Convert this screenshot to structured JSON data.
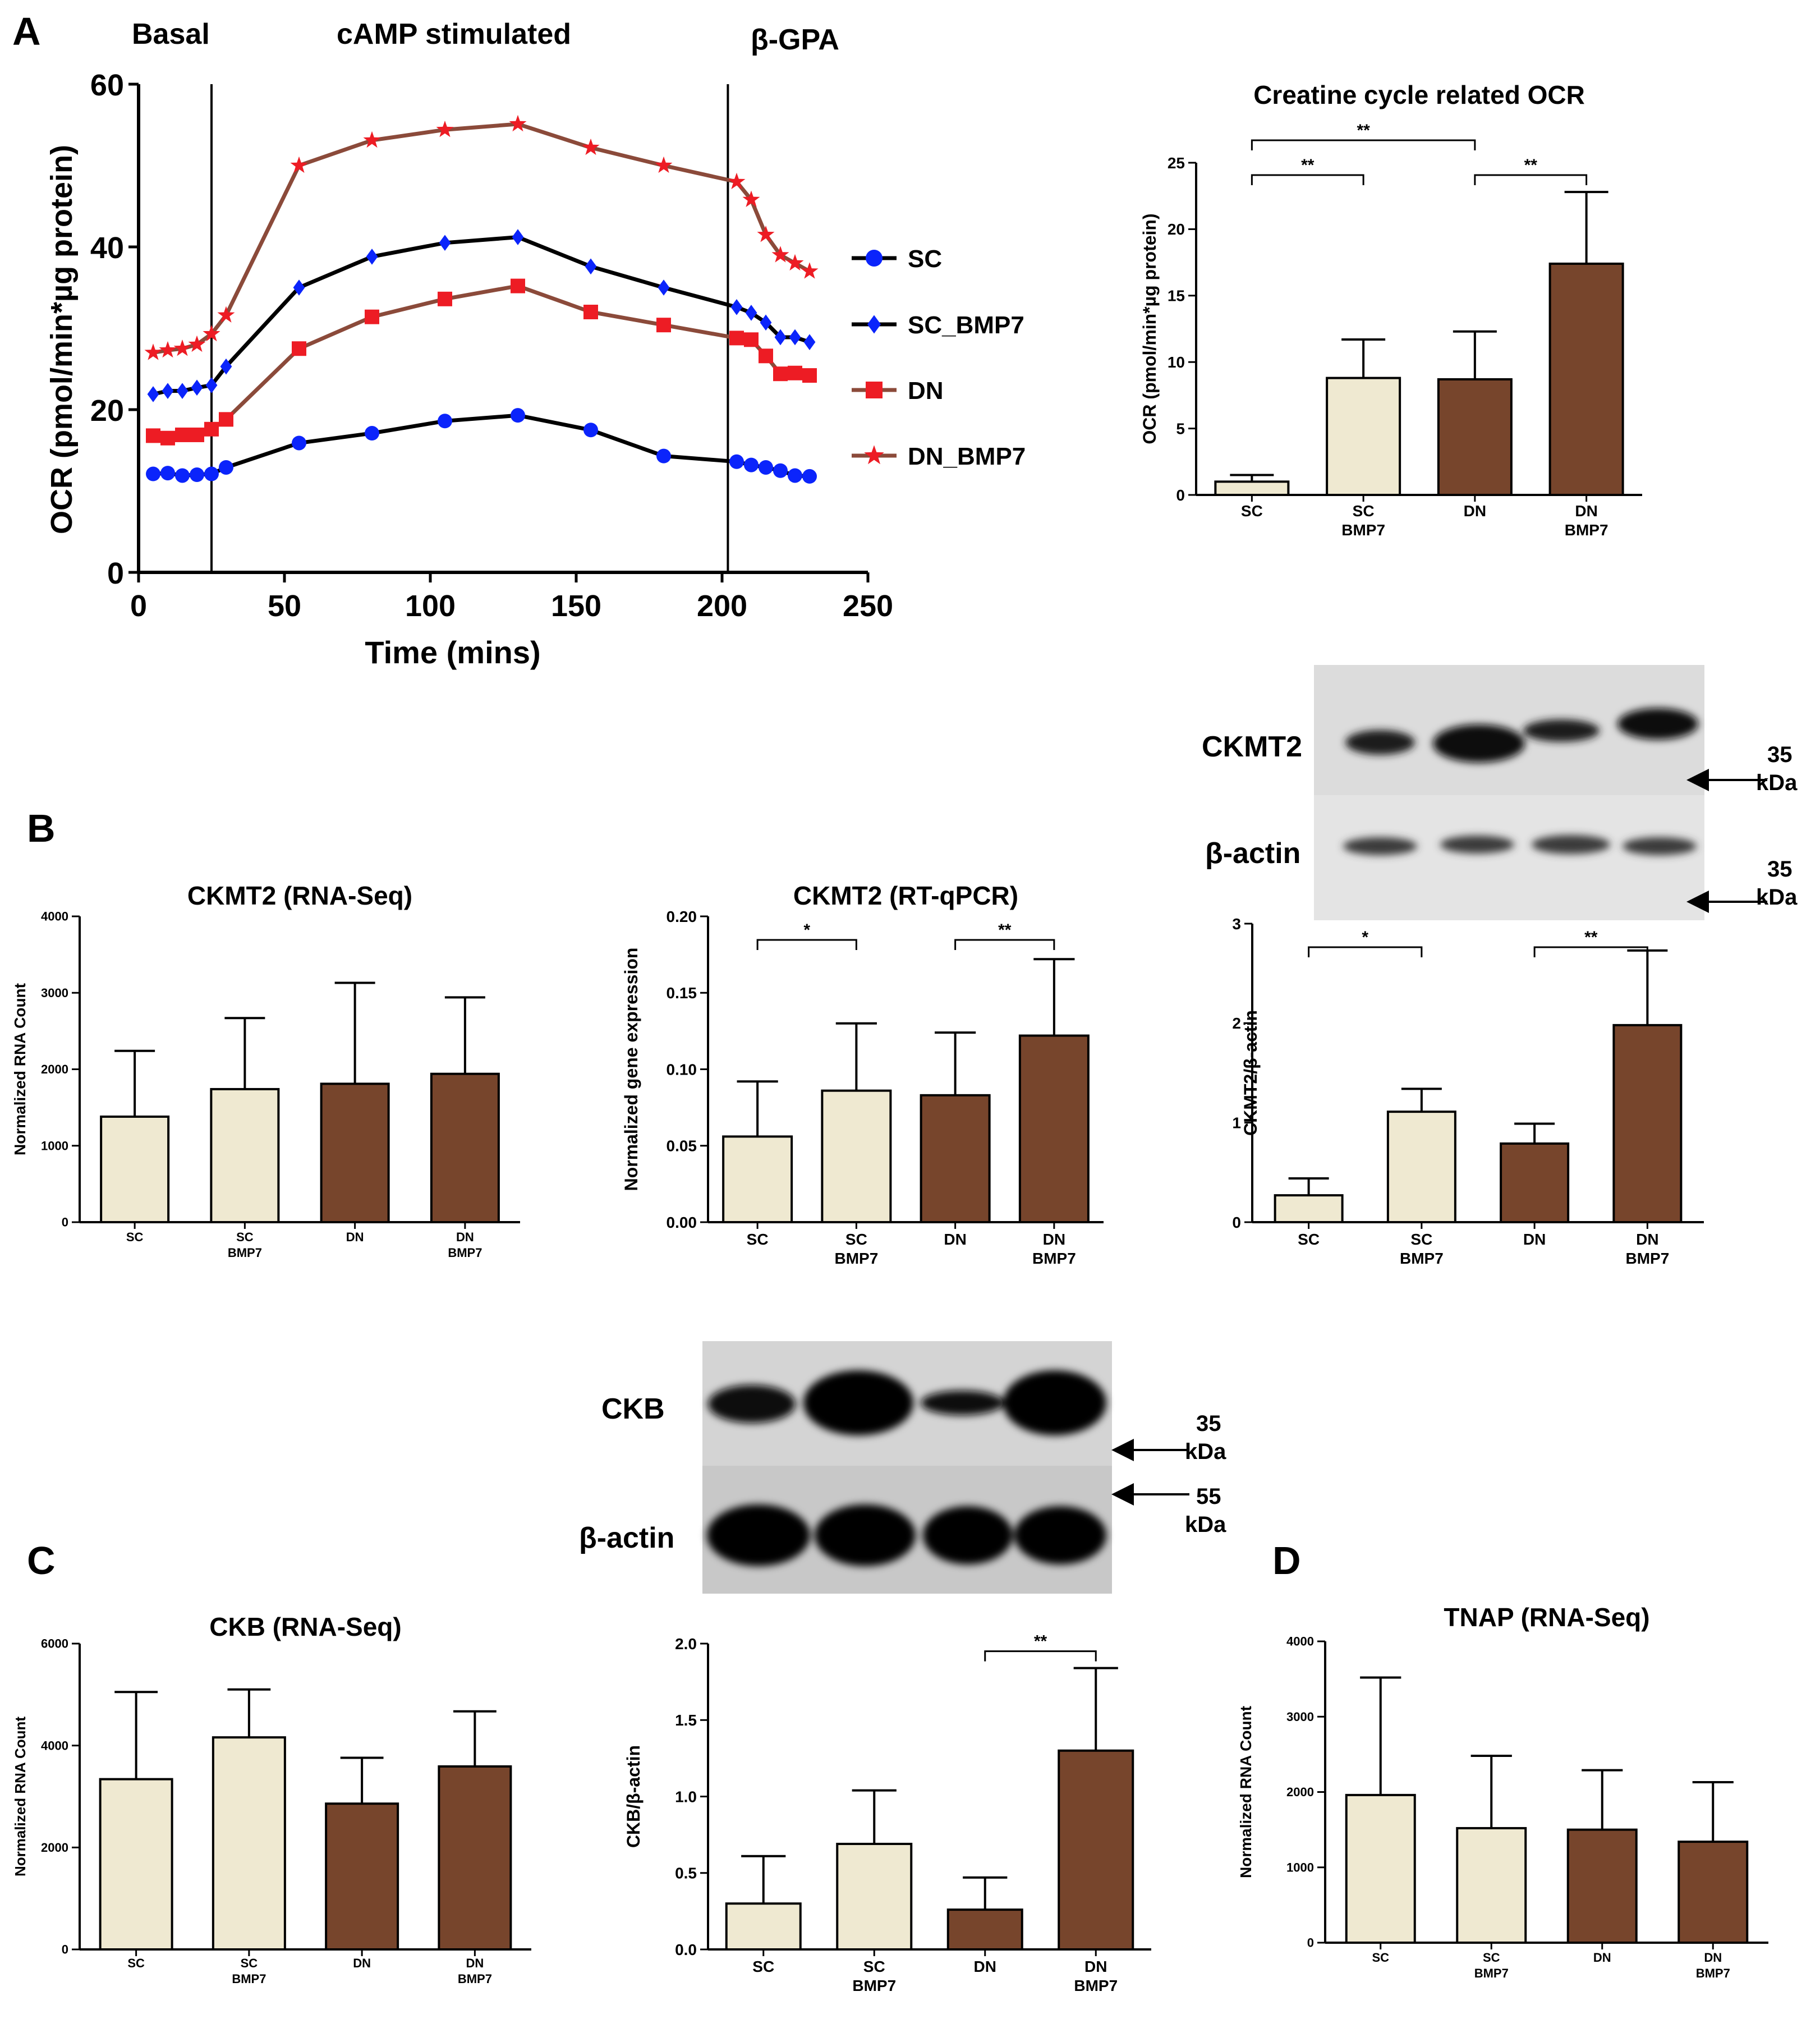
{
  "figure": {
    "panel_letters": [
      "A",
      "B",
      "C",
      "D"
    ],
    "colors": {
      "SC": "#0b24fb",
      "SC_BMP7": "#0b24fb",
      "DN": "#ed1c24",
      "DN_BMP7": "#ed1c24",
      "line_SC": "#000000",
      "line_SC_BMP7": "#000000",
      "line_DN": "#8b4a3a",
      "line_DN_BMP7": "#8b4a3a",
      "bar_light": "#efe9d1",
      "bar_dark": "#77452c"
    }
  },
  "panelA": {
    "phase_labels": [
      "Basal",
      "cAMP stimulated",
      "β-GPA"
    ],
    "legend": [
      "SC",
      "SC_BMP7",
      "DN",
      "DN_BMP7"
    ]
  },
  "blots": {
    "ckmt2": {
      "labels": [
        "CKMT2",
        "β-actin"
      ],
      "markers": [
        [
          "35",
          "kDa"
        ],
        [
          "35",
          "kDa"
        ]
      ]
    },
    "ckb": {
      "labels": [
        "CKB",
        "β-actin"
      ],
      "markers": [
        [
          "35",
          "kDa"
        ],
        [
          "55",
          "kDa"
        ]
      ]
    }
  },
  "chart_data": [
    {
      "id": "ocr_timecourse",
      "type": "line",
      "title": "",
      "xlabel": "Time (mins)",
      "ylabel": "OCR (pmol/min*µg protein)",
      "xlim": [
        0,
        250
      ],
      "ylim": [
        0,
        60
      ],
      "xticks": [
        0,
        50,
        100,
        150,
        200,
        250
      ],
      "yticks": [
        0,
        20,
        40,
        60
      ],
      "vlines": [
        25,
        202
      ],
      "series": [
        {
          "name": "SC",
          "marker": "circle",
          "x": [
            5,
            10,
            15,
            20,
            25,
            30,
            55,
            80,
            105,
            130,
            155,
            180,
            205,
            210,
            215,
            220,
            225,
            230
          ],
          "y": [
            12.1,
            12.2,
            11.9,
            12.0,
            12.1,
            12.9,
            15.9,
            17.1,
            18.6,
            19.3,
            17.5,
            14.3,
            13.6,
            13.2,
            12.9,
            12.5,
            11.9,
            11.8
          ]
        },
        {
          "name": "SC_BMP7",
          "marker": "diamond",
          "x": [
            5,
            10,
            15,
            20,
            25,
            30,
            55,
            80,
            105,
            130,
            155,
            180,
            205,
            210,
            215,
            220,
            225,
            230
          ],
          "y": [
            21.9,
            22.3,
            22.3,
            22.7,
            23.0,
            25.3,
            35.0,
            38.8,
            40.5,
            41.2,
            37.6,
            35.0,
            32.6,
            31.9,
            30.7,
            28.9,
            28.9,
            28.3
          ]
        },
        {
          "name": "DN",
          "marker": "square",
          "x": [
            5,
            10,
            15,
            20,
            25,
            30,
            55,
            80,
            105,
            130,
            155,
            180,
            205,
            210,
            215,
            220,
            225,
            230
          ],
          "y": [
            16.8,
            16.5,
            16.9,
            16.9,
            17.6,
            18.8,
            27.5,
            31.4,
            33.6,
            35.2,
            32.0,
            30.4,
            28.8,
            28.6,
            26.6,
            24.4,
            24.5,
            24.2
          ]
        },
        {
          "name": "DN_BMP7",
          "marker": "star",
          "x": [
            5,
            10,
            15,
            20,
            25,
            30,
            55,
            80,
            105,
            130,
            155,
            180,
            205,
            210,
            215,
            220,
            225,
            230
          ],
          "y": [
            27.0,
            27.3,
            27.5,
            28.0,
            29.3,
            31.6,
            50.0,
            53.1,
            54.4,
            55.1,
            52.2,
            50.0,
            48.0,
            45.8,
            41.5,
            39.0,
            38.0,
            37.0
          ]
        }
      ]
    },
    {
      "id": "creatine_ocr",
      "type": "bar",
      "title": "Creatine cycle related OCR",
      "ylabel": "OCR (pmol/min*µg protein)",
      "categories": [
        [
          "SC"
        ],
        [
          "SC",
          "BMP7"
        ],
        [
          "DN"
        ],
        [
          "DN",
          "BMP7"
        ]
      ],
      "values": [
        1.0,
        8.8,
        8.7,
        17.4
      ],
      "errors": [
        0.5,
        2.9,
        3.6,
        5.4
      ],
      "ylim": [
        0,
        25
      ],
      "yticks": [
        0,
        5,
        10,
        15,
        20,
        25
      ],
      "significance": [
        {
          "from": 0,
          "to": 1,
          "label": "**",
          "level": 0
        },
        {
          "from": 2,
          "to": 3,
          "label": "**",
          "level": 0
        },
        {
          "from": 0,
          "to": 2,
          "label": "**",
          "level": 1
        }
      ]
    },
    {
      "id": "ckmt2_rnaseq",
      "type": "bar",
      "title": "CKMT2 (RNA-Seq)",
      "ylabel": "Normalized RNA Count",
      "categories": [
        [
          "SC"
        ],
        [
          "SC",
          "BMP7"
        ],
        [
          "DN"
        ],
        [
          "DN",
          "BMP7"
        ]
      ],
      "values": [
        1380,
        1740,
        1810,
        1940
      ],
      "errors": [
        860,
        930,
        1320,
        1000
      ],
      "ylim": [
        0,
        4000
      ],
      "yticks": [
        0,
        1000,
        2000,
        3000,
        4000
      ],
      "significance": []
    },
    {
      "id": "ckmt2_rtqpcr",
      "type": "bar",
      "title": "CKMT2 (RT-qPCR)",
      "ylabel": "Normalized gene expression",
      "categories": [
        [
          "SC"
        ],
        [
          "SC",
          "BMP7"
        ],
        [
          "DN"
        ],
        [
          "DN",
          "BMP7"
        ]
      ],
      "values": [
        0.056,
        0.086,
        0.083,
        0.122
      ],
      "errors": [
        0.036,
        0.044,
        0.041,
        0.05
      ],
      "ylim": [
        0,
        0.2
      ],
      "yticks": [
        0.0,
        0.05,
        0.1,
        0.15,
        0.2
      ],
      "significance": [
        {
          "from": 0,
          "to": 1,
          "label": "*",
          "level": 0
        },
        {
          "from": 2,
          "to": 3,
          "label": "**",
          "level": 0
        }
      ]
    },
    {
      "id": "ckmt2_blot_quant",
      "type": "bar",
      "title": "",
      "ylabel": "CKMT2/β-actin",
      "categories": [
        [
          "SC"
        ],
        [
          "SC",
          "BMP7"
        ],
        [
          "DN"
        ],
        [
          "DN",
          "BMP7"
        ]
      ],
      "values": [
        0.27,
        1.11,
        0.79,
        1.98
      ],
      "errors": [
        0.17,
        0.23,
        0.2,
        0.75
      ],
      "ylim": [
        0,
        3
      ],
      "yticks": [
        0,
        1,
        2,
        3
      ],
      "significance": [
        {
          "from": 0,
          "to": 1,
          "label": "*",
          "level": 0
        },
        {
          "from": 2,
          "to": 3,
          "label": "**",
          "level": 0
        }
      ]
    },
    {
      "id": "ckb_rnaseq",
      "type": "bar",
      "title": "CKB (RNA-Seq)",
      "ylabel": "Normalized RNA Count",
      "categories": [
        [
          "SC"
        ],
        [
          "SC",
          "BMP7"
        ],
        [
          "DN"
        ],
        [
          "DN",
          "BMP7"
        ]
      ],
      "values": [
        3340,
        4160,
        2860,
        3590
      ],
      "errors": [
        1710,
        940,
        900,
        1080
      ],
      "ylim": [
        0,
        6000
      ],
      "yticks": [
        0,
        2000,
        4000,
        6000
      ],
      "significance": []
    },
    {
      "id": "ckb_blot_quant",
      "type": "bar",
      "title": "",
      "ylabel": "CKB/β-actin",
      "categories": [
        [
          "SC"
        ],
        [
          "SC",
          "BMP7"
        ],
        [
          "DN"
        ],
        [
          "DN",
          "BMP7"
        ]
      ],
      "values": [
        0.3,
        0.69,
        0.26,
        1.3
      ],
      "errors": [
        0.31,
        0.35,
        0.21,
        0.54
      ],
      "ylim": [
        0,
        2.0
      ],
      "yticks": [
        0.0,
        0.5,
        1.0,
        1.5,
        2.0
      ],
      "significance": [
        {
          "from": 2,
          "to": 3,
          "label": "**",
          "level": 0
        }
      ]
    },
    {
      "id": "tnap_rnaseq",
      "type": "bar",
      "title": "TNAP (RNA-Seq)",
      "ylabel": "Normalized RNA Count",
      "categories": [
        [
          "SC"
        ],
        [
          "SC",
          "BMP7"
        ],
        [
          "DN"
        ],
        [
          "DN",
          "BMP7"
        ]
      ],
      "values": [
        1960,
        1520,
        1500,
        1340
      ],
      "errors": [
        1560,
        960,
        790,
        790
      ],
      "ylim": [
        0,
        4000
      ],
      "yticks": [
        0,
        1000,
        2000,
        3000,
        4000
      ],
      "significance": []
    }
  ]
}
